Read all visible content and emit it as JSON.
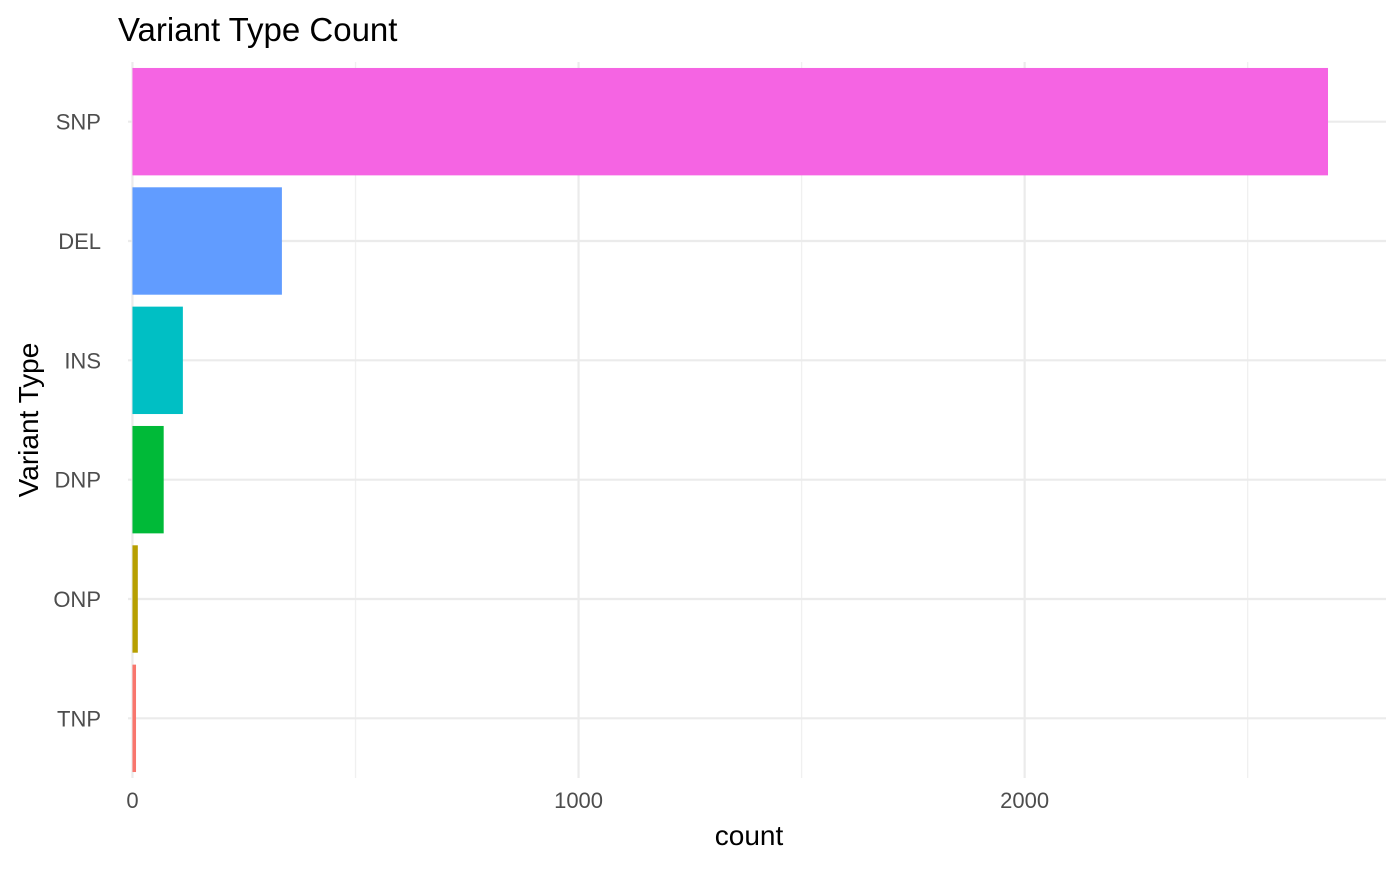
{
  "chart_data": {
    "type": "bar",
    "orientation": "horizontal",
    "title": "Variant Type Count",
    "xlabel": "count",
    "ylabel": "Variant Type",
    "xlim": [
      -10,
      2810
    ],
    "x_ticks": [
      0,
      1000,
      2000
    ],
    "x_minor_ticks": [
      500,
      1500,
      2500
    ],
    "categories": [
      "SNP",
      "DEL",
      "INS",
      "DNP",
      "ONP",
      "TNP"
    ],
    "values": [
      2680,
      335,
      113,
      70,
      12,
      8
    ],
    "colors": [
      "#F564E3",
      "#619CFF",
      "#00BFC4",
      "#00BA38",
      "#B79F00",
      "#F8766D"
    ],
    "grid": true,
    "legend": "none"
  }
}
